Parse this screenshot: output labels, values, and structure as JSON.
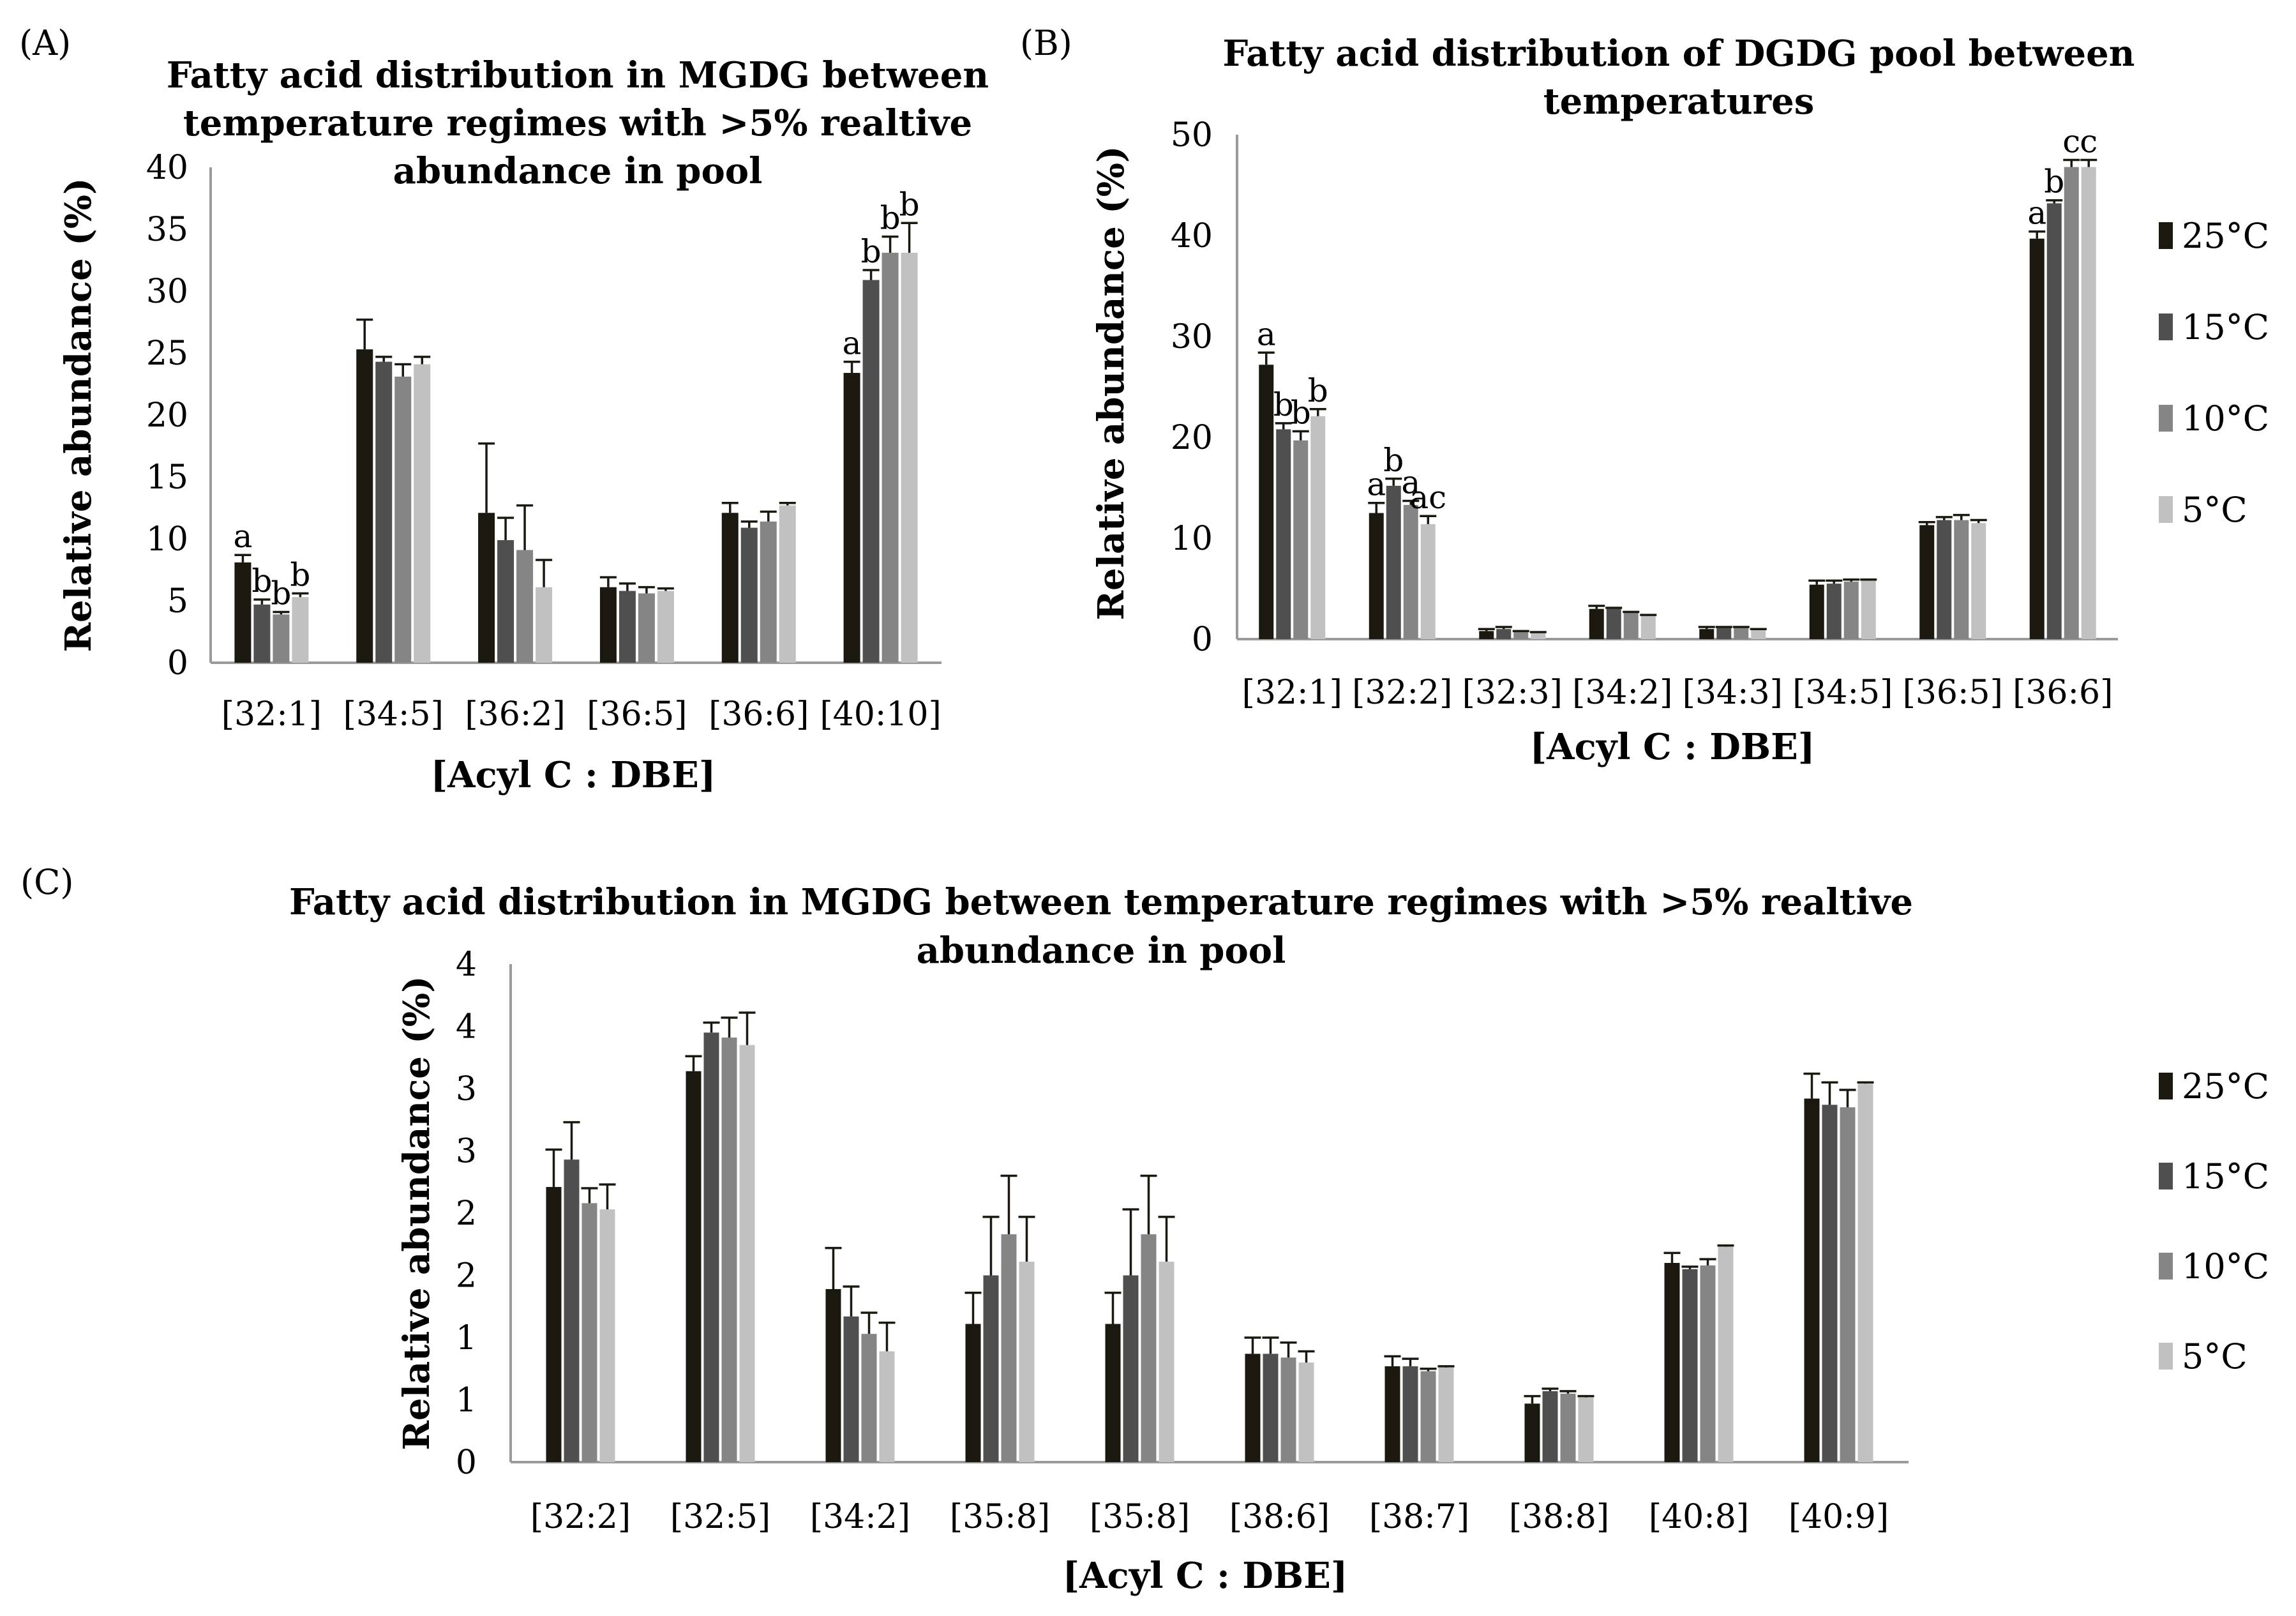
{
  "colors": {
    "25C": "#1b1810",
    "15C": "#4f4f4f",
    "10C": "#858585",
    "5C": "#c1c1c1",
    "axis": "#9a9a9a"
  },
  "chart_data": [
    {
      "panel": "(A)",
      "type": "bar",
      "title_lines": [
        "Fatty acid distribution in MGDG between",
        "temperature regimes with >5% realtive",
        "abundance in pool"
      ],
      "xlabel": "[Acyl C : DBE]",
      "ylabel": "Relative abundance (%)",
      "ylim": [
        0,
        40
      ],
      "yticks": [
        "0",
        "5",
        "10",
        "15",
        "20",
        "25",
        "30",
        "35",
        "40"
      ],
      "ytick_values": [
        0,
        5,
        10,
        15,
        20,
        25,
        30,
        35,
        40
      ],
      "categories": [
        "[32:1]",
        "[34:5]",
        "[36:2]",
        "[36:5]",
        "[36:6]",
        "[40:10]"
      ],
      "series": [
        {
          "name": "25°C",
          "color_key": "25C",
          "values": [
            8.1,
            25.3,
            12.1,
            6.1,
            12.1,
            23.4
          ],
          "errors": [
            0.6,
            2.4,
            5.6,
            0.8,
            0.8,
            0.9
          ]
        },
        {
          "name": "15°C",
          "color_key": "15C",
          "values": [
            4.7,
            24.3,
            9.9,
            5.8,
            10.9,
            30.9
          ],
          "errors": [
            0.4,
            0.4,
            1.8,
            0.6,
            0.5,
            0.8
          ]
        },
        {
          "name": "10°C",
          "color_key": "10C",
          "values": [
            3.9,
            23.1,
            9.1,
            5.6,
            11.4,
            33.1
          ],
          "errors": [
            0.2,
            1.0,
            3.6,
            0.5,
            0.8,
            1.3
          ]
        },
        {
          "name": "5°C",
          "color_key": "5C",
          "values": [
            5.3,
            24.1,
            6.1,
            5.8,
            12.7,
            33.1
          ],
          "errors": [
            0.3,
            0.6,
            2.2,
            0.2,
            0.2,
            2.4
          ]
        }
      ],
      "sig_labels": [
        [
          "a",
          "b",
          "b",
          "b"
        ],
        [],
        [],
        [],
        [],
        [
          "a",
          "b",
          "b",
          "b"
        ]
      ],
      "legend": false
    },
    {
      "panel": "(B)",
      "type": "bar",
      "title_lines": [
        "Fatty acid distribution of DGDG pool between",
        "temperatures"
      ],
      "xlabel": "[Acyl C : DBE]",
      "ylabel": "Relative abundance (%)",
      "ylim": [
        0,
        50
      ],
      "yticks": [
        "0",
        "10",
        "20",
        "30",
        "40",
        "50"
      ],
      "ytick_values": [
        0,
        10,
        20,
        30,
        40,
        50
      ],
      "categories": [
        "[32:1]",
        "[32:2]",
        "[32:3]",
        "[34:2]",
        "[34:3]",
        "[34:5]",
        "[36:5]",
        "[36:6]"
      ],
      "series": [
        {
          "name": "25°C",
          "color_key": "25C",
          "values": [
            27.2,
            12.5,
            0.8,
            3.0,
            1.0,
            5.4,
            11.3,
            39.7
          ],
          "errors": [
            1.2,
            1.0,
            0.2,
            0.3,
            0.2,
            0.4,
            0.3,
            0.7
          ]
        },
        {
          "name": "15°C",
          "color_key": "15C",
          "values": [
            20.8,
            15.2,
            1.0,
            3.0,
            1.1,
            5.5,
            11.8,
            43.2
          ],
          "errors": [
            0.6,
            0.7,
            0.2,
            0.1,
            0.1,
            0.3,
            0.3,
            0.3
          ]
        },
        {
          "name": "10°C",
          "color_key": "10C",
          "values": [
            19.7,
            13.3,
            0.7,
            2.6,
            1.1,
            5.7,
            11.8,
            46.8
          ],
          "errors": [
            0.9,
            0.4,
            0.1,
            0.1,
            0.1,
            0.2,
            0.5,
            0.7
          ]
        },
        {
          "name": "5°C",
          "color_key": "5C",
          "values": [
            22.1,
            11.4,
            0.6,
            2.3,
            0.9,
            5.8,
            11.5,
            46.8
          ],
          "errors": [
            0.7,
            0.8,
            0.1,
            0.1,
            0.1,
            0.1,
            0.3,
            0.7
          ]
        }
      ],
      "sig_labels": [
        [
          "a",
          "b",
          "b",
          "b"
        ],
        [
          "a",
          "b",
          "a",
          "ac"
        ],
        [],
        [],
        [],
        [],
        [],
        [
          "a",
          "b",
          "c",
          "c"
        ]
      ],
      "legend": true
    },
    {
      "panel": "(C)",
      "type": "bar",
      "title_lines": [
        "Fatty acid distribution in MGDG between temperature regimes with >5% realtive",
        "abundance in pool"
      ],
      "xlabel": "[Acyl C : DBE]",
      "ylabel": "Relative abundance (%)",
      "ylim": [
        0,
        4
      ],
      "yticks": [
        "0",
        "1",
        "1",
        "2",
        "2",
        "3",
        "3",
        "4",
        "4"
      ],
      "ytick_values": [
        0,
        0.5,
        1,
        1.5,
        2,
        2.5,
        3,
        3.5,
        4
      ],
      "categories": [
        "[32:2]",
        "[32:5]",
        "[34:2]",
        "[35:8]",
        "[35:8]",
        "[38:6]",
        "[38:7]",
        "[38:8]",
        "[40:8]",
        "[40:9]"
      ],
      "series": [
        {
          "name": "25°C",
          "color_key": "25C",
          "values": [
            2.21,
            3.14,
            1.39,
            1.11,
            1.11,
            0.87,
            0.77,
            0.47,
            1.6,
            2.92
          ],
          "errors": [
            0.3,
            0.12,
            0.33,
            0.25,
            0.25,
            0.13,
            0.08,
            0.06,
            0.08,
            0.2
          ]
        },
        {
          "name": "15°C",
          "color_key": "15C",
          "values": [
            2.43,
            3.45,
            1.17,
            1.5,
            1.5,
            0.87,
            0.77,
            0.57,
            1.55,
            2.87
          ],
          "errors": [
            0.3,
            0.08,
            0.24,
            0.47,
            0.53,
            0.13,
            0.06,
            0.02,
            0.02,
            0.18
          ]
        },
        {
          "name": "10°C",
          "color_key": "10C",
          "values": [
            2.08,
            3.41,
            1.03,
            1.83,
            1.83,
            0.84,
            0.73,
            0.55,
            1.58,
            2.85
          ],
          "errors": [
            0.12,
            0.16,
            0.17,
            0.47,
            0.47,
            0.12,
            0.02,
            0.02,
            0.05,
            0.14
          ]
        },
        {
          "name": "5°C",
          "color_key": "5C",
          "values": [
            2.03,
            3.35,
            0.89,
            1.61,
            1.61,
            0.8,
            0.76,
            0.52,
            1.73,
            3.04
          ],
          "errors": [
            0.2,
            0.26,
            0.23,
            0.36,
            0.36,
            0.09,
            0.01,
            0.01,
            0.01,
            0.01
          ]
        }
      ],
      "sig_labels": [],
      "legend": true
    }
  ]
}
